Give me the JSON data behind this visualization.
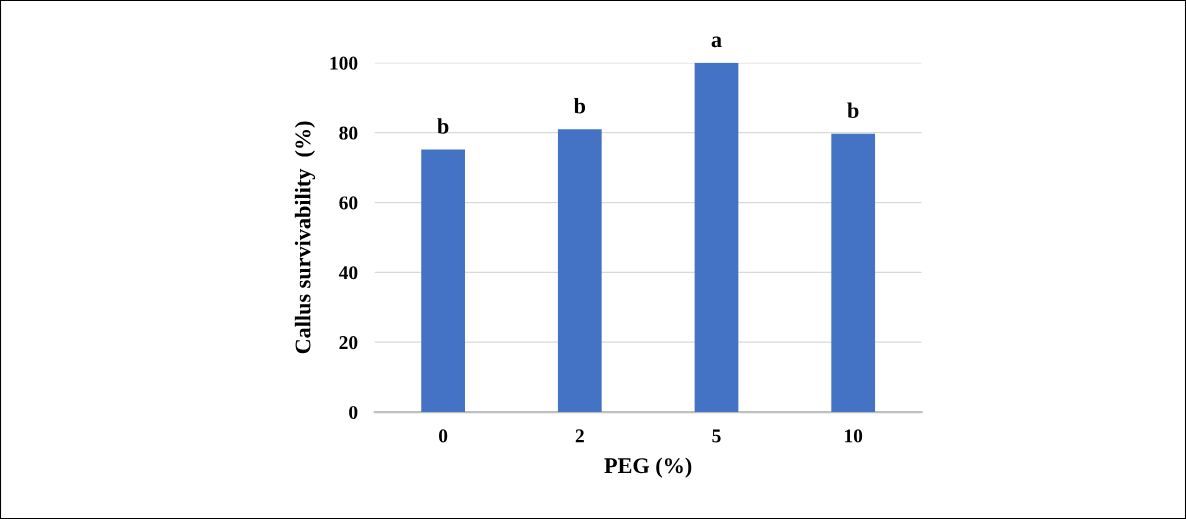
{
  "chart_data": {
    "type": "bar",
    "xlabel": "PEG (%)",
    "ylabel": "Callus survivability  (%)",
    "categories": [
      "0",
      "2",
      "5",
      "10"
    ],
    "values": [
      75.2,
      81,
      100,
      79.7
    ],
    "color": "#4472c4",
    "ylim": [
      0,
      100
    ],
    "yticks": [
      0,
      20,
      40,
      60,
      80,
      100
    ],
    "grid": "y",
    "annotations": [
      {
        "text": "b",
        "x": "0",
        "y": 75.2
      },
      {
        "text": "b",
        "x": "2",
        "y": 81
      },
      {
        "text": "a",
        "x": "5",
        "y": 100
      },
      {
        "text": "b",
        "x": "10",
        "y": 79.7
      }
    ]
  }
}
